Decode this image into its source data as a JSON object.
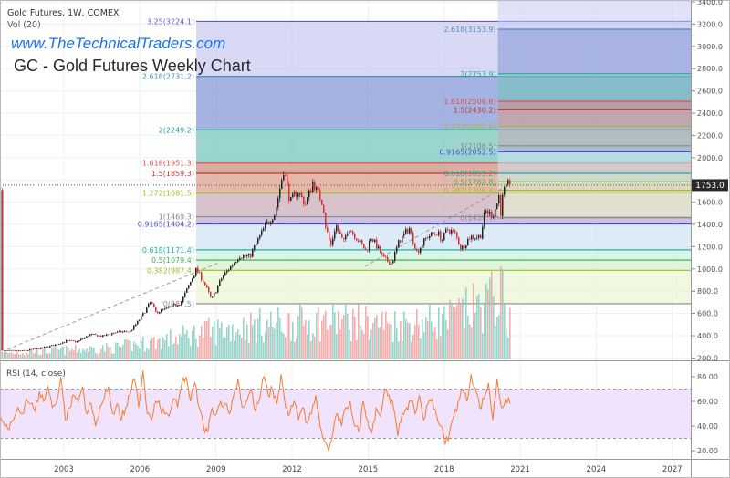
{
  "header": {
    "symbol_line": "Gold Futures, 1W, COMEX",
    "volume_line": "Vol (20)",
    "website": "www.TheTechnicalTraders.com",
    "title": "GC - Gold Futures Weekly Chart"
  },
  "rsi_panel": {
    "label": "RSI (14, close)"
  },
  "last_price": {
    "label": "1753.0",
    "value": 1753.0
  },
  "chart_data": {
    "type": "candlestick",
    "title": "GC - Gold Futures Weekly Chart",
    "price_axis": {
      "ticks": [
        "3400.0",
        "3200.0",
        "3000.0",
        "2800.0",
        "2600.0",
        "2400.0",
        "2200.0",
        "2000.0",
        "1800.0",
        "1600.0",
        "1400.0",
        "1200.0",
        "1000.0",
        "800.0",
        "600.0",
        "400.0",
        "200.0"
      ],
      "range": [
        200,
        3400
      ]
    },
    "rsi_axis": {
      "ticks": [
        "80.00",
        "60.00",
        "40.00",
        "20.00"
      ],
      "band": [
        30,
        70
      ]
    },
    "time_axis": {
      "ticks": [
        "2003",
        "2006",
        "2009",
        "2012",
        "2015",
        "2018",
        "2021",
        "2024",
        "2027"
      ]
    },
    "price_anchors": [
      [
        2000.5,
        265
      ],
      [
        2001.3,
        262
      ],
      [
        2002.0,
        285
      ],
      [
        2002.6,
        315
      ],
      [
        2003.1,
        355
      ],
      [
        2003.5,
        345
      ],
      [
        2004.0,
        410
      ],
      [
        2004.5,
        395
      ],
      [
        2005.0,
        430
      ],
      [
        2005.6,
        440
      ],
      [
        2006.0,
        560
      ],
      [
        2006.4,
        705
      ],
      [
        2006.6,
        610
      ],
      [
        2007.0,
        640
      ],
      [
        2007.6,
        700
      ],
      [
        2008.0,
        900
      ],
      [
        2008.2,
        1000
      ],
      [
        2008.5,
        880
      ],
      [
        2008.8,
        720
      ],
      [
        2009.2,
        920
      ],
      [
        2009.9,
        1120
      ],
      [
        2010.3,
        1110
      ],
      [
        2010.9,
        1380
      ],
      [
        2011.3,
        1500
      ],
      [
        2011.65,
        1900
      ],
      [
        2011.9,
        1600
      ],
      [
        2012.2,
        1700
      ],
      [
        2012.5,
        1580
      ],
      [
        2012.8,
        1780
      ],
      [
        2013.2,
        1580
      ],
      [
        2013.3,
        1380
      ],
      [
        2013.5,
        1200
      ],
      [
        2013.7,
        1400
      ],
      [
        2014.0,
        1230
      ],
      [
        2014.2,
        1380
      ],
      [
        2014.9,
        1160
      ],
      [
        2015.1,
        1290
      ],
      [
        2015.6,
        1090
      ],
      [
        2015.9,
        1050
      ],
      [
        2016.2,
        1250
      ],
      [
        2016.6,
        1370
      ],
      [
        2016.9,
        1150
      ],
      [
        2017.3,
        1290
      ],
      [
        2017.7,
        1330
      ],
      [
        2017.9,
        1260
      ],
      [
        2018.1,
        1360
      ],
      [
        2018.4,
        1320
      ],
      [
        2018.65,
        1180
      ],
      [
        2019.0,
        1290
      ],
      [
        2019.4,
        1290
      ],
      [
        2019.6,
        1520
      ],
      [
        2019.9,
        1480
      ],
      [
        2020.05,
        1580
      ],
      [
        2020.15,
        1670
      ],
      [
        2020.22,
        1470
      ],
      [
        2020.3,
        1700
      ],
      [
        2020.45,
        1720
      ],
      [
        2020.55,
        1800
      ],
      [
        2020.6,
        1753
      ]
    ],
    "volume_anchors": [
      [
        2000.5,
        8
      ],
      [
        2005,
        15
      ],
      [
        2007,
        25
      ],
      [
        2008.5,
        35
      ],
      [
        2011,
        45
      ],
      [
        2013.5,
        50
      ],
      [
        2016,
        45
      ],
      [
        2018,
        50
      ],
      [
        2019.5,
        70
      ],
      [
        2020.2,
        85
      ],
      [
        2020.6,
        45
      ]
    ],
    "rsi": {
      "start_year": 2000.5,
      "end_year": 2020.6,
      "values": [
        48,
        40,
        37,
        45,
        55,
        50,
        62,
        58,
        52,
        68,
        60,
        72,
        55,
        60,
        80,
        45,
        55,
        65,
        60,
        72,
        50,
        58,
        40,
        55,
        62,
        72,
        50,
        58,
        45,
        55,
        65,
        78,
        55,
        85,
        50,
        45,
        60,
        55,
        50,
        48,
        62,
        55,
        75,
        80,
        60,
        75,
        55,
        40,
        35,
        55,
        50,
        60,
        58,
        50,
        65,
        78,
        55,
        60,
        70,
        52,
        62,
        80,
        65,
        70,
        58,
        82,
        55,
        50,
        60,
        45,
        55,
        42,
        50,
        65,
        40,
        28,
        20,
        35,
        50,
        40,
        55,
        60,
        40,
        35,
        60,
        45,
        35,
        55,
        48,
        70,
        65,
        55,
        32,
        50,
        55,
        60,
        50,
        65,
        45,
        58,
        62,
        48,
        40,
        25,
        35,
        48,
        60,
        70,
        60,
        82,
        70,
        55,
        62,
        75,
        45,
        78,
        55,
        62,
        58
      ]
    },
    "fib_left": {
      "start_year": 2008.22,
      "levels": [
        {
          "ratio": "3.25",
          "price": 3224.1,
          "label": "3.25(3224.1)",
          "color": "#5c5cd6"
        },
        {
          "ratio": "2.618",
          "price": 2731.2,
          "label": "2.618(2731.2)",
          "color": "#4a90b8"
        },
        {
          "ratio": "2",
          "price": 2249.2,
          "label": "2(2249.2)",
          "color": "#26a69a"
        },
        {
          "ratio": "1.618",
          "price": 1951.3,
          "label": "1.618(1951.3)",
          "color": "#d9534f"
        },
        {
          "ratio": "1.5",
          "price": 1859.3,
          "label": "1.5(1859.3)",
          "color": "#c0392b"
        },
        {
          "ratio": "1.272",
          "price": 1681.5,
          "label": "1.272(1681.5)",
          "color": "#9ebf2a"
        },
        {
          "ratio": "1",
          "price": 1469.3,
          "label": "1(1469.3)",
          "color": "#888888"
        },
        {
          "ratio": "0.9165",
          "price": 1404.2,
          "label": "0.9165(1404.2)",
          "color": "#4b4bd0"
        },
        {
          "ratio": "0.618",
          "price": 1171.4,
          "label": "0.618(1171.4)",
          "color": "#20b2a0"
        },
        {
          "ratio": "0.5",
          "price": 1079.4,
          "label": "0.5(1079.4)",
          "color": "#4caf50"
        },
        {
          "ratio": "0.382",
          "price": 987.4,
          "label": "0.382(987.4)",
          "color": "#9ebf2a"
        },
        {
          "ratio": "0",
          "price": 687.5,
          "label": "0(687.5)",
          "color": "#888888"
        }
      ]
    },
    "fib_right": {
      "start_year": 2020.12,
      "levels": [
        {
          "ratio": "3.25",
          "price": 3470,
          "label": "",
          "color": "#5c5cd6"
        },
        {
          "ratio": "2.618",
          "price": 3153.9,
          "label": "2.618(3153.9)",
          "color": "#4a90b8"
        },
        {
          "ratio": "2",
          "price": 2753.9,
          "label": "2(2753.9)",
          "color": "#26a69a"
        },
        {
          "ratio": "1.618",
          "price": 2506.6,
          "label": "1.618(2506.6)",
          "color": "#d9534f"
        },
        {
          "ratio": "1.5",
          "price": 2430.2,
          "label": "1.5(2430.2)",
          "color": "#c0392b"
        },
        {
          "ratio": "1.272",
          "price": 2282.6,
          "label": "1.272(2282.6)",
          "color": "#9ebf2a"
        },
        {
          "ratio": "1",
          "price": 2106.5,
          "label": "1(2106.5)",
          "color": "#888888"
        },
        {
          "ratio": "0.9165",
          "price": 2052.5,
          "label": "0.9165(2052.5)",
          "color": "#4b4bd0"
        },
        {
          "ratio": "0.618",
          "price": 1859.2,
          "label": "0.618(1859.2)",
          "color": "#20b2a0"
        },
        {
          "ratio": "0.5",
          "price": 1782.8,
          "label": "0.5(1782.8)",
          "color": "#4caf50"
        },
        {
          "ratio": "0.382",
          "price": 1706.4,
          "label": "0.382(1706.4)",
          "color": "#9ebf2a"
        },
        {
          "ratio": "0",
          "price": 1459.7,
          "label": "0(1459.7)",
          "color": "#888888"
        }
      ]
    },
    "zone_colors": [
      "#c9c9f2",
      "#7f93d6",
      "#6fc4b8",
      "#c98a7a",
      "#d89a86",
      "#c7aab8",
      "#b9a6d8",
      "#cfe3f5",
      "#c8f0e0",
      "#d3f2cc",
      "#eaf5d2"
    ],
    "colors": {
      "up": "#222222",
      "down": "#d32f2f",
      "rsi": "#f57c32",
      "rsi_band": "#f1e3fb",
      "vol_up": "#7fc9bd",
      "vol_down": "#ef9a9a"
    }
  }
}
